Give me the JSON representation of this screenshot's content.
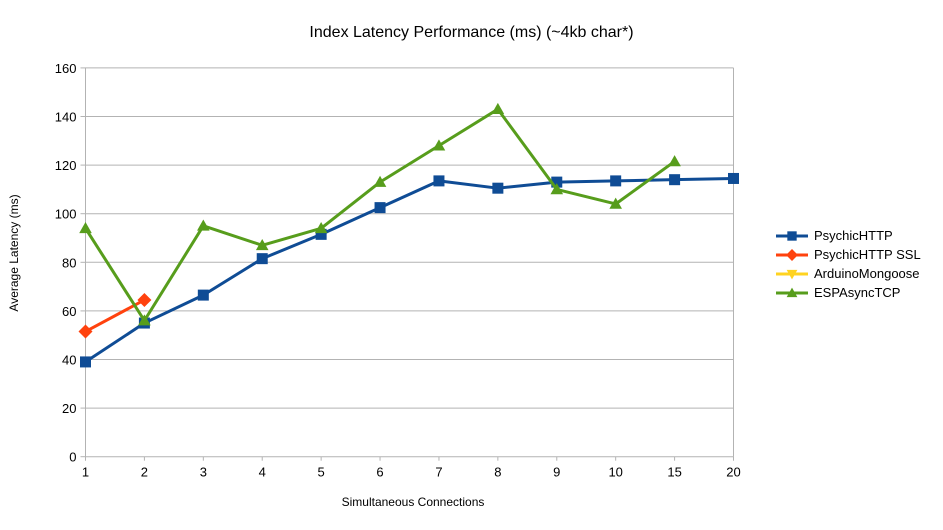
{
  "chart_data": {
    "type": "line",
    "title": "Index Latency Performance (ms) (~4kb char*)",
    "xlabel": "Simultaneous Connections",
    "ylabel": "Average Latency (ms)",
    "categories": [
      "1",
      "2",
      "3",
      "4",
      "5",
      "6",
      "7",
      "8",
      "9",
      "10",
      "15",
      "20"
    ],
    "ylim": [
      0,
      160
    ],
    "ytick_step": 20,
    "grid": "horizontal",
    "legend_position": "right",
    "axis_color": "#b3b3b3",
    "grid_color": "#b3b3b3",
    "series": [
      {
        "name": "PsychicHTTP",
        "color": "#0F4C95",
        "marker": "square",
        "values": [
          39,
          55,
          66.5,
          81.5,
          91.5,
          102.5,
          113.5,
          110.5,
          113,
          113.5,
          114,
          114.5
        ]
      },
      {
        "name": "PsychicHTTP SSL",
        "color": "#FF420E",
        "marker": "diamond",
        "values": [
          51.5,
          64.5,
          null,
          null,
          null,
          null,
          null,
          null,
          null,
          null,
          null,
          null
        ]
      },
      {
        "name": "ArduinoMongoose",
        "color": "#FFD320",
        "marker": "triangle-down",
        "values": [
          null,
          null,
          null,
          null,
          null,
          null,
          null,
          null,
          null,
          null,
          null,
          null
        ]
      },
      {
        "name": "ESPAsyncTCP",
        "color": "#579D1C",
        "marker": "triangle-up",
        "values": [
          94,
          56,
          95,
          87,
          94,
          113,
          128,
          143,
          110,
          104,
          121.5,
          null
        ]
      }
    ]
  }
}
